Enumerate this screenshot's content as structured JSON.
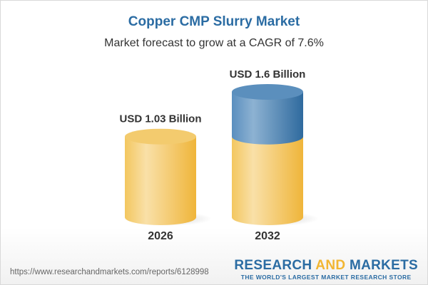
{
  "chart_data": {
    "type": "bar",
    "title": "Copper CMP Slurry Market",
    "subtitle": "Market forecast to grow at a CAGR of 7.6%",
    "categories": [
      "2026",
      "2032"
    ],
    "values": [
      1.03,
      1.6
    ],
    "data_labels": [
      "USD 1.03 Billion",
      "USD 1.6 Billion"
    ],
    "unit": "USD Billion",
    "style": "3d-cylinder",
    "colors": {
      "base": "#f2c45a",
      "growth": "#4a86b8"
    }
  },
  "footer": {
    "url": "https://www.researchandmarkets.com/reports/6128998",
    "logo_part1": "RESEARCH ",
    "logo_part2": "AND",
    "logo_part3": " MARKETS",
    "tagline": "THE WORLD'S LARGEST MARKET RESEARCH STORE"
  }
}
